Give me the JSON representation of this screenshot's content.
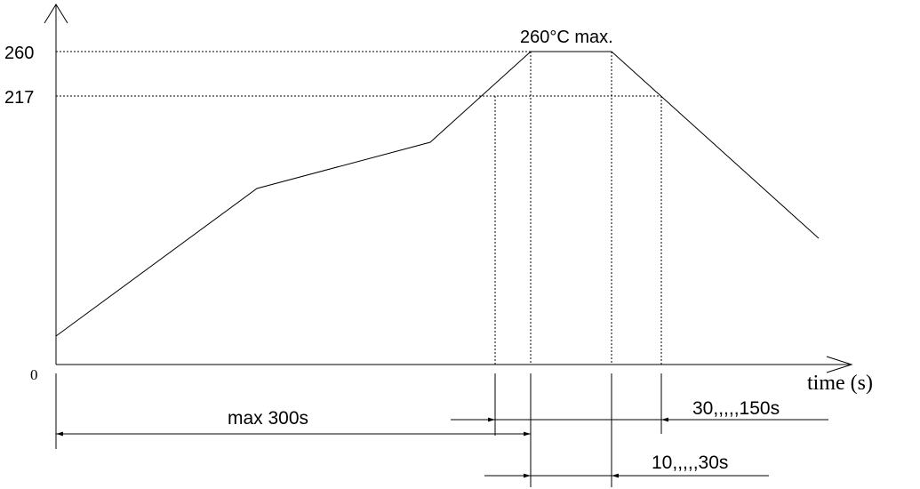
{
  "chart_data": {
    "type": "line",
    "title": "",
    "xlabel": "time (s)",
    "ylabel": "",
    "y_ticks": [
      "260",
      "217",
      "0"
    ],
    "peak_label": "260°C max.",
    "series": [
      {
        "values": "reflow temperature profile"
      }
    ],
    "dimensions": {
      "max_300s": "max 300s",
      "time_above_217": "30,,,,,150s",
      "time_at_peak": "10,,,,,30s"
    }
  }
}
